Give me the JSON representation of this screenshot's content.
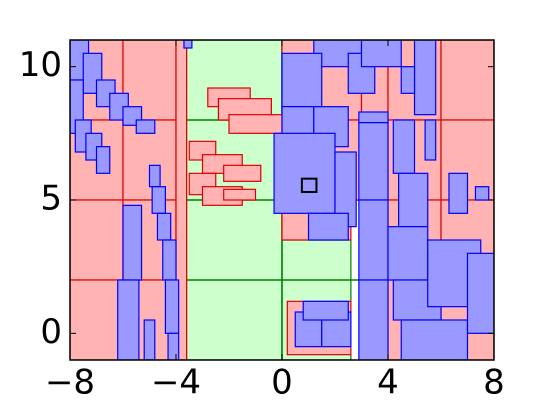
{
  "chart_data": {
    "type": "boxes",
    "xlim": [
      -8,
      8
    ],
    "ylim": [
      -1,
      11
    ],
    "xticks": [
      {
        "value": -8,
        "label": "−8"
      },
      {
        "value": -4,
        "label": "−4"
      },
      0,
      4,
      8
    ],
    "yticks": [
      0,
      5,
      10
    ],
    "series": [
      {
        "color": "#ccffcc",
        "edgecolor": "#008000",
        "boxes": [
          [
            -3.6,
            0,
            -1,
            11
          ],
          [
            0,
            2.6,
            -1,
            3.5
          ]
        ]
      },
      {
        "color": "#ffb3b3",
        "edgecolor": "#e00000",
        "boxes": [
          [
            -8,
            -6,
            8,
            11
          ],
          [
            -6,
            -4,
            8,
            11
          ],
          [
            -8,
            -6,
            5,
            8
          ],
          [
            -6,
            -4,
            5,
            8
          ],
          [
            -8,
            -6,
            2,
            5
          ],
          [
            -6,
            -4,
            2,
            5
          ],
          [
            -8,
            -6,
            -1,
            2
          ],
          [
            -6,
            -4,
            -1,
            2
          ],
          [
            -4,
            -3.6,
            -1,
            11
          ],
          [
            0,
            3,
            8,
            11
          ],
          [
            0,
            3,
            5,
            8
          ],
          [
            3,
            4,
            -1,
            11
          ],
          [
            4,
            6,
            8,
            11
          ],
          [
            6,
            8,
            8,
            11
          ],
          [
            4,
            6,
            5,
            8
          ],
          [
            6,
            8,
            5,
            8
          ],
          [
            4,
            6,
            2,
            5
          ],
          [
            6,
            8,
            2,
            5
          ],
          [
            4,
            6,
            -1,
            2
          ],
          [
            6,
            8,
            -1,
            2
          ],
          [
            0,
            2.6,
            3.5,
            5
          ],
          [
            0.2,
            2.6,
            -0.8,
            1.2
          ],
          [
            -2.8,
            -1.2,
            8.5,
            9.2
          ],
          [
            -2.4,
            -0.4,
            8,
            8.8
          ],
          [
            -2,
            0,
            7.5,
            8.2
          ],
          [
            -3.5,
            -2.5,
            6.5,
            7.2
          ],
          [
            -3,
            -1.5,
            6,
            6.7
          ],
          [
            -2.2,
            -0.8,
            5.7,
            6.3
          ],
          [
            -3.5,
            -2.5,
            5.2,
            6
          ],
          [
            -3,
            -1.5,
            4.8,
            5.5
          ],
          [
            -2.2,
            -1,
            5,
            5.4
          ]
        ]
      },
      {
        "color": "#9999ff",
        "edgecolor": "#0000ff",
        "boxes": [
          [
            -8,
            -7.3,
            9.5,
            11
          ],
          [
            -7.5,
            -6.8,
            9,
            10.5
          ],
          [
            -7,
            -6.3,
            8.5,
            9.5
          ],
          [
            -6.5,
            -5.8,
            8,
            9
          ],
          [
            -6,
            -5.3,
            7.8,
            8.5
          ],
          [
            -5.5,
            -4.8,
            7.5,
            8
          ],
          [
            -8,
            -7.5,
            7.5,
            9.5
          ],
          [
            -7.8,
            -7.2,
            6.8,
            8
          ],
          [
            -7.4,
            -6.8,
            6.5,
            7.5
          ],
          [
            -7,
            -6.5,
            6,
            7
          ],
          [
            -3.7,
            -3.4,
            10.7,
            11
          ],
          [
            1.2,
            3,
            10,
            11
          ],
          [
            0,
            1.5,
            8.5,
            10.5
          ],
          [
            0,
            1.2,
            7,
            8.5
          ],
          [
            1.2,
            2.5,
            7,
            8.5
          ],
          [
            2.5,
            3.5,
            9,
            10.5
          ],
          [
            3,
            4.5,
            10,
            11
          ],
          [
            -0.3,
            2,
            4.5,
            7.5
          ],
          [
            2,
            2.8,
            4,
            6.8
          ],
          [
            1,
            2.5,
            3.5,
            4.5
          ],
          [
            -5,
            -4.6,
            5.5,
            6.3
          ],
          [
            -4.9,
            -4.4,
            4.5,
            5.5
          ],
          [
            -4.7,
            -4.2,
            3.5,
            4.5
          ],
          [
            -4.5,
            -4,
            2,
            3.5
          ],
          [
            -4.4,
            -3.9,
            0,
            2
          ],
          [
            -4.3,
            -3.9,
            -1,
            0
          ],
          [
            -6,
            -5.3,
            2,
            4.8
          ],
          [
            -6.2,
            -5.4,
            -1,
            2
          ],
          [
            -5.2,
            -4.8,
            -1,
            0.5
          ],
          [
            0.5,
            1.5,
            -0.5,
            0.8
          ],
          [
            1.5,
            2.6,
            -0.5,
            0.8
          ],
          [
            0.8,
            2.5,
            0.5,
            1.2
          ],
          [
            2.9,
            4,
            7.9,
            8.3
          ],
          [
            2.9,
            4,
            5,
            7.9
          ],
          [
            2.9,
            4,
            2,
            5
          ],
          [
            2.9,
            4,
            -1,
            2
          ],
          [
            4.2,
            5,
            6,
            8
          ],
          [
            4.4,
            5.5,
            4,
            6
          ],
          [
            4,
            5.5,
            2,
            4
          ],
          [
            4.2,
            6,
            0.5,
            2
          ],
          [
            4.5,
            7,
            -1,
            0.5
          ],
          [
            5.5,
            7.5,
            1,
            3.5
          ],
          [
            7,
            8,
            0,
            3
          ],
          [
            6.3,
            7,
            4.5,
            6
          ],
          [
            5,
            5.8,
            8.2,
            11
          ],
          [
            4.5,
            5,
            9,
            10
          ],
          [
            5.4,
            5.8,
            6.5,
            8
          ],
          [
            7.3,
            7.8,
            5,
            5.5
          ]
        ]
      },
      {
        "color": "none",
        "edgecolor": "#000000",
        "boxes": [
          [
            0.75,
            1.3,
            5.3,
            5.8
          ]
        ]
      }
    ],
    "lines": {
      "color": "#008000",
      "segments": [
        [
          -8,
          8,
          5,
          5
        ],
        [
          -4,
          0,
          8,
          8
        ],
        [
          -4,
          3,
          2,
          2
        ],
        [
          -4,
          -4,
          -1,
          11
        ],
        [
          0,
          0,
          -1,
          11
        ],
        [
          4,
          4,
          -1,
          11
        ]
      ]
    }
  }
}
